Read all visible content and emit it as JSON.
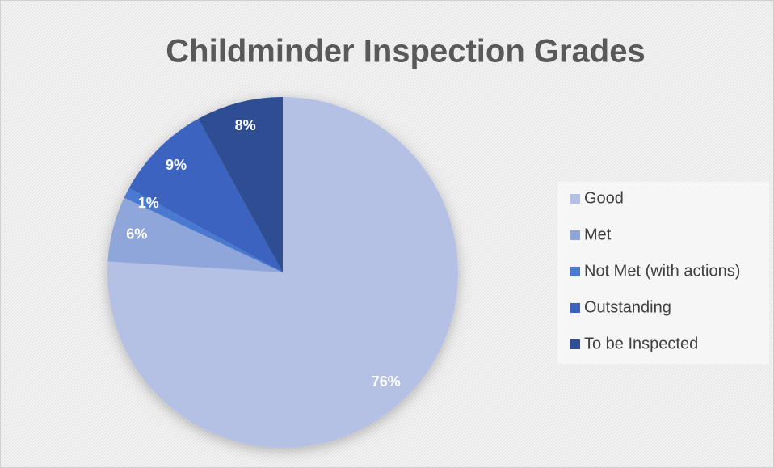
{
  "chart_data": {
    "type": "pie",
    "title": "Childminder Inspection Grades",
    "categories": [
      "Good",
      "Met",
      "Not Met (with actions)",
      "Outstanding",
      "To be Inspected"
    ],
    "values": [
      76,
      6,
      1,
      9,
      8
    ],
    "value_labels": [
      "76%",
      "6%",
      "1%",
      "9%",
      "8%"
    ],
    "colors": [
      "#b4c1e4",
      "#8fa6da",
      "#4a79d0",
      "#3b63bf",
      "#2f4e93"
    ],
    "legend": "right"
  }
}
